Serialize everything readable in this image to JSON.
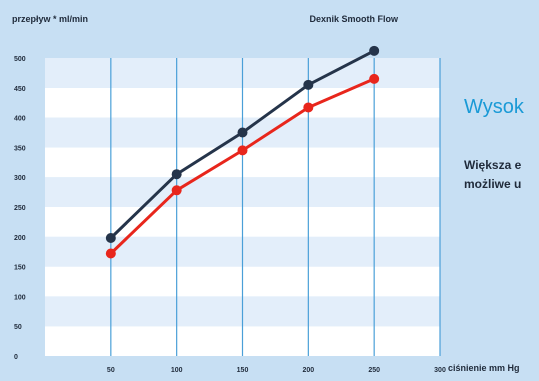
{
  "chart_data": {
    "type": "line",
    "title": "Dexnik Smooth Flow",
    "ylabel": "przepływ * ml/min",
    "xlabel": "ciśnienie mm Hg",
    "x_ticks": [
      "50",
      "100",
      "150",
      "200",
      "250",
      "300"
    ],
    "y_ticks": [
      "0",
      "50",
      "100",
      "150",
      "200",
      "250",
      "300",
      "350",
      "400",
      "450",
      "500"
    ],
    "xlim": [
      0,
      300
    ],
    "ylim": [
      0,
      500
    ],
    "grid": true,
    "series": [
      {
        "color": "#25344a",
        "x": [
          50,
          100,
          150,
          200,
          250
        ],
        "y": [
          198,
          305,
          375,
          455,
          512
        ]
      },
      {
        "color": "#e8261c",
        "x": [
          50,
          100,
          150,
          200,
          250
        ],
        "y": [
          172,
          278,
          345,
          417,
          465
        ]
      }
    ]
  },
  "side_text": {
    "heading": "Wysok",
    "line1": "Większa e",
    "line2": "możliwe u"
  },
  "colors": {
    "band_light": "#e3eefa",
    "band_white": "#ffffff",
    "gridline": "#4a9fd8"
  }
}
